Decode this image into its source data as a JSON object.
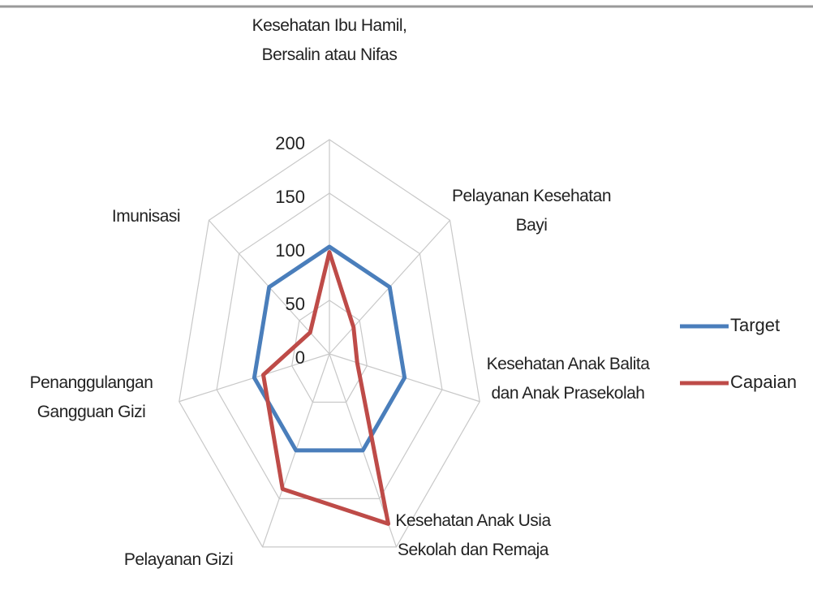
{
  "chart_data": {
    "type": "radar",
    "categories": [
      "Kesehatan Ibu Hamil, Bersalin atau Nifas",
      "Pelayanan Kesehatan Bayi",
      "Kesehatan Anak Balita dan Anak Prasekolah",
      "Kesehatan Anak Usia Sekolah dan Remaja",
      "Pelayanan Gizi",
      "Penanggulangan Gangguan Gizi",
      "Imunisasi"
    ],
    "series": [
      {
        "name": "Target",
        "color": "#4a7ebb",
        "values": [
          100,
          100,
          100,
          100,
          100,
          100,
          100
        ]
      },
      {
        "name": "Capaian",
        "color": "#be4b48",
        "values": [
          95,
          40,
          37,
          176,
          140,
          88,
          32
        ]
      }
    ],
    "ylim": [
      0,
      200
    ],
    "yticks": [
      0,
      50,
      100,
      150,
      200
    ],
    "grid": true,
    "legend": "right"
  }
}
